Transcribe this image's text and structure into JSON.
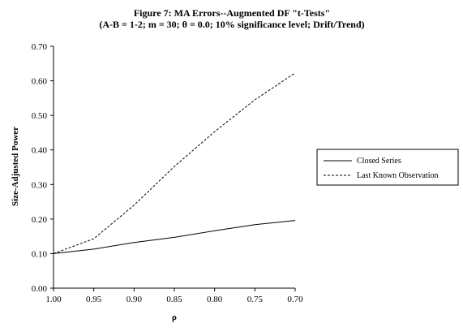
{
  "chart_data": {
    "type": "line",
    "title": "Figure 7: MA Errors--Augmented DF \"t-Tests\"",
    "subtitle": "(A-B = 1-2; m = 30; θ = 0.0; 10% significance level; Drift/Trend)",
    "xlabel": "ρ",
    "ylabel": "Size-Adjusted Power",
    "x": [
      1.0,
      0.95,
      0.9,
      0.85,
      0.8,
      0.75,
      0.7
    ],
    "x_tick_labels": [
      "1.00",
      "0.95",
      "0.90",
      "0.85",
      "0.80",
      "0.75",
      "0.70"
    ],
    "x_reversed": true,
    "xlim": [
      1.0,
      0.7
    ],
    "ylim": [
      0.0,
      0.7
    ],
    "y_ticks": [
      0.0,
      0.1,
      0.2,
      0.3,
      0.4,
      0.5,
      0.6,
      0.7
    ],
    "y_tick_labels": [
      "0.00",
      "0.10",
      "0.20",
      "0.30",
      "0.40",
      "0.50",
      "0.60",
      "0.70"
    ],
    "grid": false,
    "legend_position": "right",
    "series": [
      {
        "name": "Closed Series",
        "style": "solid",
        "color": "#000000",
        "values": [
          0.1,
          0.113,
          0.132,
          0.147,
          0.166,
          0.184,
          0.196
        ]
      },
      {
        "name": "Last Known Observation",
        "style": "dashed",
        "color": "#000000",
        "values": [
          0.1,
          0.143,
          0.24,
          0.352,
          0.453,
          0.545,
          0.623
        ]
      }
    ]
  }
}
